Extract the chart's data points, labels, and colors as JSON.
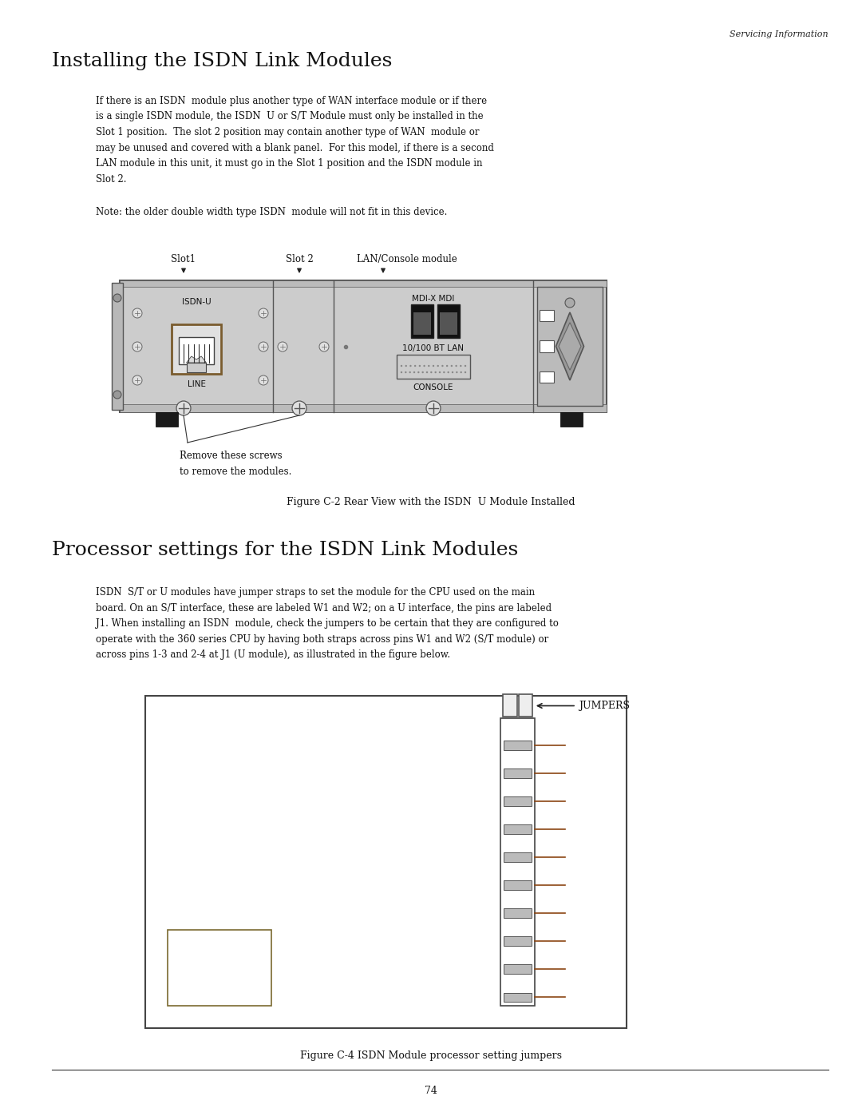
{
  "bg_color": "#ffffff",
  "page_width": 10.8,
  "page_height": 13.97,
  "header_italic": "Servicing Information",
  "section1_title": "Installing the ISDN Link Modules",
  "section1_body_lines": [
    "If there is an ISDN  module plus another type of WAN interface module or if there",
    "is a single ISDN module, the ISDN  U or S/T Module must only be installed in the",
    "Slot 1 position.  The slot 2 position may contain another type of WAN  module or",
    "may be unused and covered with a blank panel.  For this model, if there is a second",
    "LAN module in this unit, it must go in the Slot 1 position and the ISDN module in",
    "Slot 2."
  ],
  "note_text": "Note: the older double width type ISDN  module will not fit in this device.",
  "fig1_caption": "Figure C-2 Rear View with the ISDN  U Module Installed",
  "section2_title": "Processor settings for the ISDN Link Modules",
  "section2_body_lines": [
    "ISDN  S/T or U modules have jumper straps to set the module for the CPU used on the main",
    "board. On an S/T interface, these are labeled W1 and W2; on a U interface, the pins are labeled",
    "J1. When installing an ISDN  module, check the jumpers to be certain that they are configured to",
    "operate with the 360 series CPU by having both straps across pins W1 and W2 (S/T module) or",
    "across pins 1-3 and 2-4 at J1 (U module), as illustrated in the figure below."
  ],
  "fig2_caption": "Figure C-4 ISDN Module processor setting jumpers",
  "page_number": "74",
  "device_color": "#cccccc",
  "device_dark": "#999999",
  "device_border": "#555555",
  "device_light": "#e0e0e0"
}
